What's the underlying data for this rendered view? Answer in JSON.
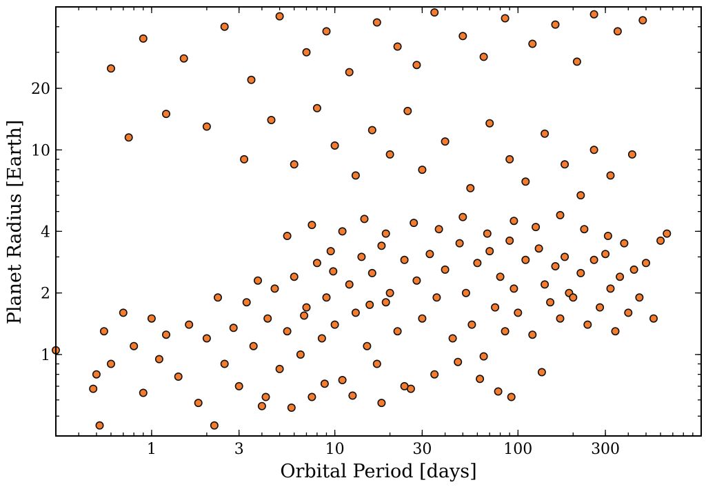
{
  "chart_data": {
    "type": "scatter",
    "title": "",
    "xlabel": "Orbital Period [days]",
    "ylabel": "Planet Radius [Earth]",
    "x_scale": "log",
    "y_scale": "log",
    "xlim": [
      0.3,
      1000
    ],
    "ylim": [
      0.4,
      50
    ],
    "x_ticks": [
      {
        "value": 1,
        "label": "1"
      },
      {
        "value": 3,
        "label": "3"
      },
      {
        "value": 10,
        "label": "10"
      },
      {
        "value": 30,
        "label": "30"
      },
      {
        "value": 100,
        "label": "100"
      },
      {
        "value": 300,
        "label": "300"
      }
    ],
    "y_ticks": [
      {
        "value": 1,
        "label": "1"
      },
      {
        "value": 2,
        "label": "2"
      },
      {
        "value": 4,
        "label": "4"
      },
      {
        "value": 10,
        "label": "10"
      },
      {
        "value": 20,
        "label": "20"
      }
    ],
    "grid": false,
    "legend": "none",
    "marker_color": "#f47c2f",
    "marker_edge_color": "#111111",
    "series": [
      {
        "points": [
          [
            0.3,
            1.05
          ],
          [
            0.48,
            0.68
          ],
          [
            0.52,
            0.45
          ],
          [
            0.5,
            0.8
          ],
          [
            0.55,
            1.3
          ],
          [
            0.6,
            0.9
          ],
          [
            0.7,
            1.6
          ],
          [
            0.8,
            1.1
          ],
          [
            0.9,
            0.65
          ],
          [
            1.0,
            1.5
          ],
          [
            1.1,
            0.95
          ],
          [
            1.2,
            1.25
          ],
          [
            1.4,
            0.78
          ],
          [
            1.6,
            1.4
          ],
          [
            1.8,
            0.58
          ],
          [
            2.0,
            1.2
          ],
          [
            2.2,
            0.45
          ],
          [
            2.5,
            0.9
          ],
          [
            2.8,
            1.35
          ],
          [
            3.0,
            0.7
          ],
          [
            3.3,
            1.8
          ],
          [
            3.6,
            1.1
          ],
          [
            4.0,
            0.56
          ],
          [
            4.3,
            1.5
          ],
          [
            4.7,
            2.1
          ],
          [
            5.0,
            0.85
          ],
          [
            5.5,
            1.3
          ],
          [
            6.0,
            2.4
          ],
          [
            6.5,
            1.0
          ],
          [
            7.0,
            1.7
          ],
          [
            7.5,
            0.62
          ],
          [
            8.0,
            2.8
          ],
          [
            8.5,
            1.2
          ],
          [
            9.0,
            1.9
          ],
          [
            9.5,
            3.2
          ],
          [
            10.0,
            1.4
          ],
          [
            11.0,
            0.75
          ],
          [
            12.0,
            2.2
          ],
          [
            13.0,
            1.6
          ],
          [
            14.0,
            3.0
          ],
          [
            15.0,
            1.1
          ],
          [
            16.0,
            2.5
          ],
          [
            17.0,
            0.9
          ],
          [
            18.0,
            3.4
          ],
          [
            19.0,
            1.8
          ],
          [
            20.0,
            2.0
          ],
          [
            22.0,
            1.3
          ],
          [
            24.0,
            2.9
          ],
          [
            26.0,
            0.68
          ],
          [
            28.0,
            2.3
          ],
          [
            30.0,
            1.5
          ],
          [
            33.0,
            3.1
          ],
          [
            36.0,
            1.9
          ],
          [
            40.0,
            2.6
          ],
          [
            44.0,
            1.2
          ],
          [
            48.0,
            3.5
          ],
          [
            52.0,
            2.0
          ],
          [
            56.0,
            1.4
          ],
          [
            60.0,
            2.8
          ],
          [
            65.0,
            0.98
          ],
          [
            70.0,
            3.2
          ],
          [
            75.0,
            1.7
          ],
          [
            80.0,
            2.4
          ],
          [
            85.0,
            1.3
          ],
          [
            90.0,
            3.6
          ],
          [
            95.0,
            2.1
          ],
          [
            100.0,
            1.6
          ],
          [
            110.0,
            2.9
          ],
          [
            120.0,
            1.25
          ],
          [
            130.0,
            3.3
          ],
          [
            140.0,
            2.2
          ],
          [
            150.0,
            1.8
          ],
          [
            160.0,
            2.7
          ],
          [
            170.0,
            1.5
          ],
          [
            180.0,
            3.0
          ],
          [
            190.0,
            2.0
          ],
          [
            200.0,
            1.9
          ],
          [
            220.0,
            2.5
          ],
          [
            240.0,
            1.4
          ],
          [
            260.0,
            2.9
          ],
          [
            280.0,
            1.7
          ],
          [
            300.0,
            3.1
          ],
          [
            320.0,
            2.1
          ],
          [
            340.0,
            1.3
          ],
          [
            360.0,
            2.4
          ],
          [
            380.0,
            3.5
          ],
          [
            400.0,
            1.6
          ],
          [
            430.0,
            2.6
          ],
          [
            460.0,
            1.9
          ],
          [
            500.0,
            2.8
          ],
          [
            550.0,
            1.5
          ],
          [
            600.0,
            3.6
          ],
          [
            0.75,
            11.5
          ],
          [
            1.2,
            15.0
          ],
          [
            2.0,
            13.0
          ],
          [
            3.2,
            9.0
          ],
          [
            4.5,
            14.0
          ],
          [
            6.0,
            8.5
          ],
          [
            8.0,
            16.0
          ],
          [
            10.0,
            10.5
          ],
          [
            13.0,
            7.5
          ],
          [
            16.0,
            12.5
          ],
          [
            20.0,
            9.5
          ],
          [
            25.0,
            15.5
          ],
          [
            30.0,
            8.0
          ],
          [
            40.0,
            11.0
          ],
          [
            55.0,
            6.5
          ],
          [
            70.0,
            13.5
          ],
          [
            90.0,
            9.0
          ],
          [
            110.0,
            7.0
          ],
          [
            140.0,
            12.0
          ],
          [
            180.0,
            8.5
          ],
          [
            220.0,
            6.0
          ],
          [
            260.0,
            10.0
          ],
          [
            320.0,
            7.5
          ],
          [
            420.0,
            9.5
          ],
          [
            0.6,
            25.0
          ],
          [
            0.9,
            35.0
          ],
          [
            1.5,
            28.0
          ],
          [
            2.5,
            40.0
          ],
          [
            3.5,
            22.0
          ],
          [
            5.0,
            45.0
          ],
          [
            7.0,
            30.0
          ],
          [
            9.0,
            38.0
          ],
          [
            12.0,
            24.0
          ],
          [
            17.0,
            42.0
          ],
          [
            22.0,
            32.0
          ],
          [
            28.0,
            26.0
          ],
          [
            35.0,
            47.0
          ],
          [
            50.0,
            36.0
          ],
          [
            65.0,
            28.5
          ],
          [
            85.0,
            44.0
          ],
          [
            120.0,
            33.0
          ],
          [
            160.0,
            41.0
          ],
          [
            210.0,
            27.0
          ],
          [
            260.0,
            46.0
          ],
          [
            350.0,
            38.0
          ],
          [
            480.0,
            43.0
          ],
          [
            5.5,
            3.8
          ],
          [
            7.5,
            4.3
          ],
          [
            11.0,
            4.0
          ],
          [
            14.5,
            4.6
          ],
          [
            19.0,
            3.9
          ],
          [
            27.0,
            4.4
          ],
          [
            37.0,
            4.1
          ],
          [
            50.0,
            4.7
          ],
          [
            68.0,
            3.9
          ],
          [
            95.0,
            4.5
          ],
          [
            125.0,
            4.2
          ],
          [
            170.0,
            4.8
          ],
          [
            230.0,
            4.1
          ],
          [
            310.0,
            3.8
          ],
          [
            650.0,
            3.9
          ],
          [
            4.2,
            0.62
          ],
          [
            5.8,
            0.55
          ],
          [
            8.8,
            0.72
          ],
          [
            12.5,
            0.63
          ],
          [
            18.0,
            0.58
          ],
          [
            24.0,
            0.7
          ],
          [
            35.0,
            0.8
          ],
          [
            47.0,
            0.92
          ],
          [
            62.0,
            0.76
          ],
          [
            78.0,
            0.66
          ],
          [
            92.0,
            0.62
          ],
          [
            135.0,
            0.82
          ],
          [
            2.3,
            1.9
          ],
          [
            3.8,
            2.3
          ],
          [
            6.8,
            1.55
          ],
          [
            9.8,
            2.55
          ],
          [
            15.5,
            1.75
          ]
        ]
      }
    ]
  }
}
